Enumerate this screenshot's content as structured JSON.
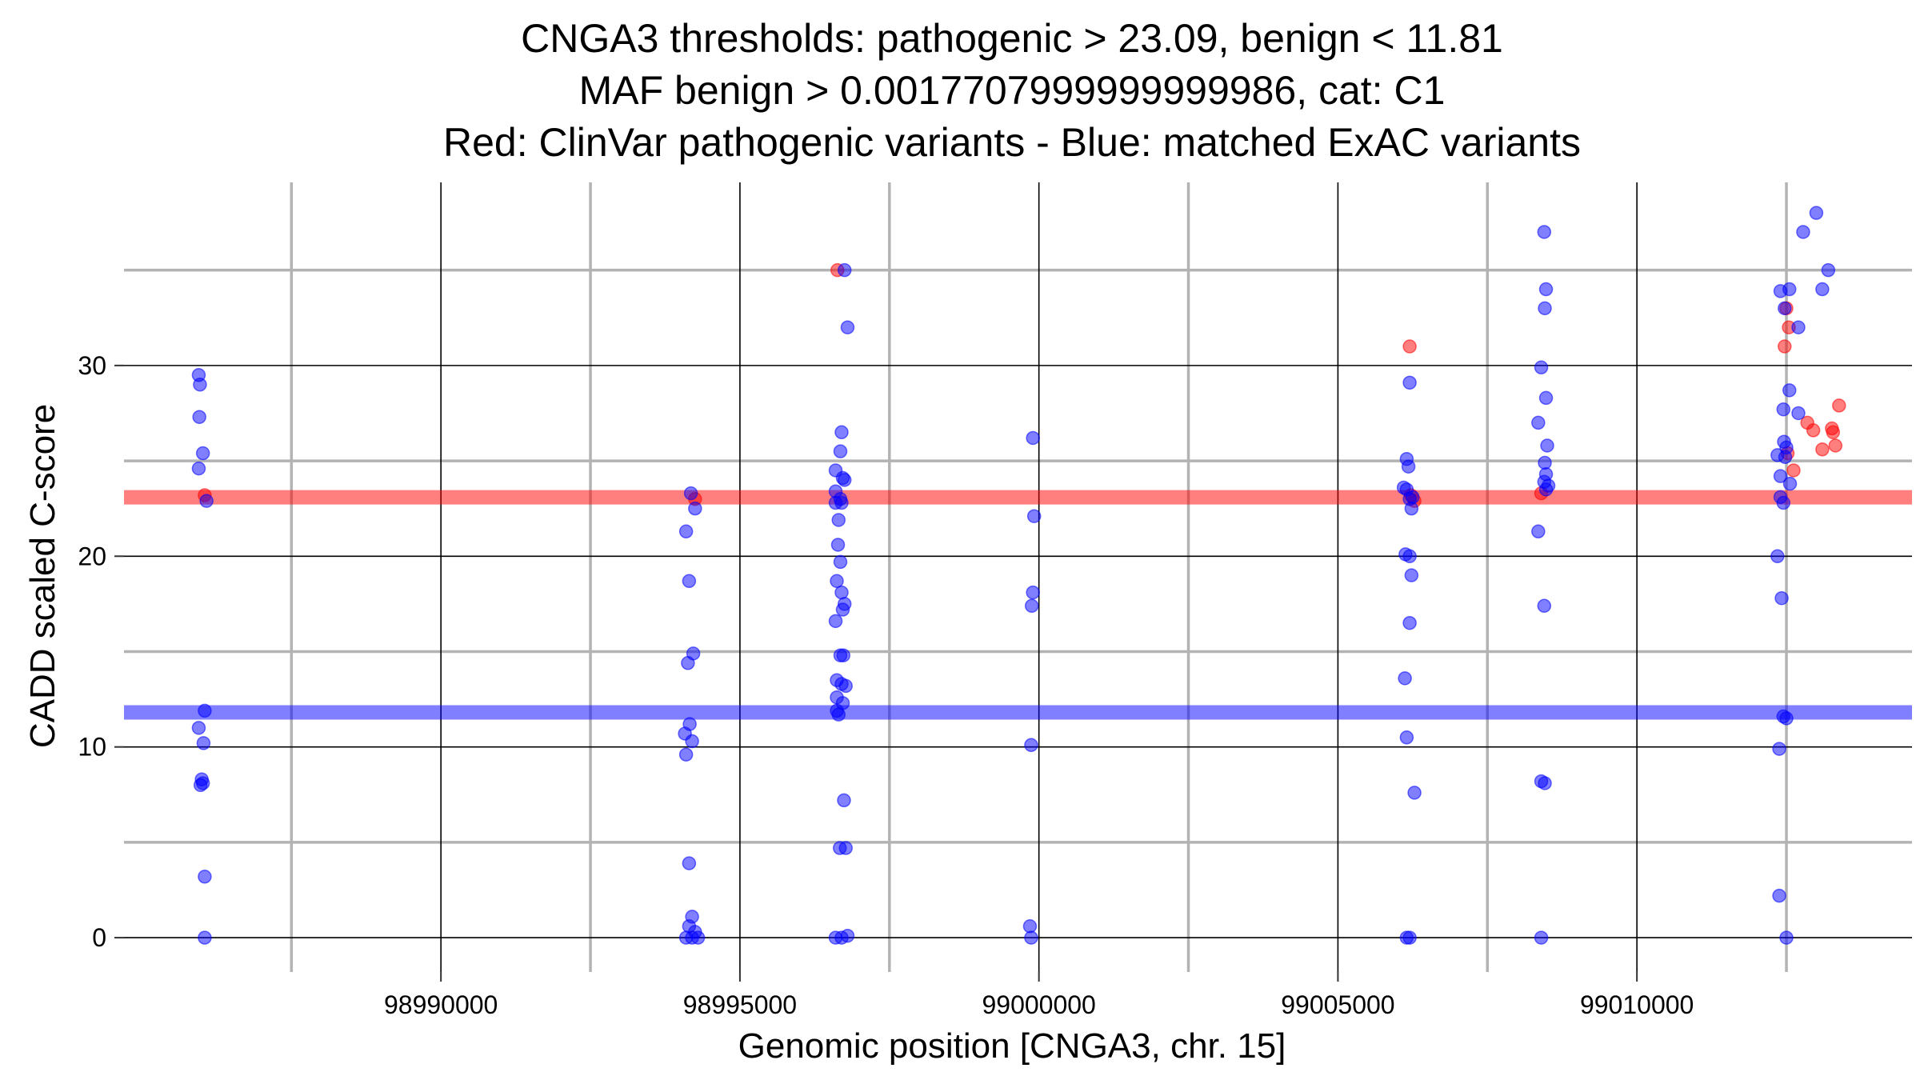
{
  "chart_data": {
    "type": "scatter",
    "title_lines": [
      "CNGA3 thresholds: pathogenic > 23.09, benign < 11.81",
      "MAF benign > 0.0017707999999999986, cat: C1",
      "Red: ClinVar pathogenic variants - Blue: matched ExAC variants"
    ],
    "xlabel": "Genomic position [CNGA3, chr. 15]",
    "ylabel": "CADD scaled C-score",
    "xlim": [
      98984700,
      99014600
    ],
    "ylim": [
      -1.8,
      39.6
    ],
    "x_ticks": [
      98990000,
      98995000,
      99000000,
      99005000,
      99010000
    ],
    "x_tick_labels": [
      "98990000",
      "98995000",
      "99000000",
      "99005000",
      "99010000"
    ],
    "x_minor_grid": [
      98987500,
      98992500,
      98997500,
      99002500,
      99007500,
      99012500
    ],
    "y_ticks": [
      0,
      10,
      20,
      30
    ],
    "y_tick_labels": [
      "0",
      "10",
      "20",
      "30"
    ],
    "y_minor_grid": [
      5,
      15,
      25,
      35
    ],
    "thresholds": {
      "pathogenic": {
        "value": 23.09,
        "color": "#ff0000"
      },
      "benign": {
        "value": 11.81,
        "color": "#0000ff"
      }
    },
    "series": [
      {
        "name": "ClinVar pathogenic variants",
        "color": "#ff0000",
        "points": [
          [
            98986050,
            23.2
          ],
          [
            98994250,
            23.0
          ],
          [
            98996630,
            35.0
          ],
          [
            99006200,
            31.0
          ],
          [
            99006220,
            23.2
          ],
          [
            99006280,
            22.9
          ],
          [
            99008400,
            23.3
          ],
          [
            99012500,
            33.0
          ],
          [
            99012540,
            32.0
          ],
          [
            99012470,
            31.0
          ],
          [
            99012520,
            25.4
          ],
          [
            99012620,
            24.5
          ],
          [
            99012850,
            27.0
          ],
          [
            99012950,
            26.6
          ],
          [
            99013100,
            25.6
          ],
          [
            99013260,
            26.7
          ],
          [
            99013280,
            26.5
          ],
          [
            99013320,
            25.8
          ],
          [
            99013380,
            27.9
          ]
        ]
      },
      {
        "name": "matched ExAC variants",
        "color": "#0000ff",
        "points": [
          [
            98985950,
            29.5
          ],
          [
            98985970,
            29.0
          ],
          [
            98985960,
            27.3
          ],
          [
            98986020,
            25.4
          ],
          [
            98985950,
            24.6
          ],
          [
            98986080,
            22.9
          ],
          [
            98986050,
            11.9
          ],
          [
            98985950,
            11.0
          ],
          [
            98986030,
            10.2
          ],
          [
            98986000,
            8.3
          ],
          [
            98985980,
            8.0
          ],
          [
            98986020,
            8.1
          ],
          [
            98986050,
            3.2
          ],
          [
            98986050,
            0.0
          ],
          [
            98994180,
            23.3
          ],
          [
            98994250,
            22.5
          ],
          [
            98994100,
            21.3
          ],
          [
            98994150,
            18.7
          ],
          [
            98994220,
            14.9
          ],
          [
            98994130,
            14.4
          ],
          [
            98994160,
            11.2
          ],
          [
            98994080,
            10.7
          ],
          [
            98994200,
            10.3
          ],
          [
            98994100,
            9.6
          ],
          [
            98994150,
            3.9
          ],
          [
            98994200,
            1.1
          ],
          [
            98994150,
            0.6
          ],
          [
            98994250,
            0.3
          ],
          [
            98994100,
            0.0
          ],
          [
            98994200,
            0.0
          ],
          [
            98994300,
            0.0
          ],
          [
            98996750,
            35.0
          ],
          [
            98996800,
            32.0
          ],
          [
            98996700,
            26.5
          ],
          [
            98996680,
            25.5
          ],
          [
            98996600,
            24.5
          ],
          [
            98996720,
            24.1
          ],
          [
            98996750,
            24.0
          ],
          [
            98996600,
            23.4
          ],
          [
            98996680,
            23.0
          ],
          [
            98996700,
            22.8
          ],
          [
            98996600,
            22.8
          ],
          [
            98996650,
            21.9
          ],
          [
            98996640,
            20.6
          ],
          [
            98996680,
            19.7
          ],
          [
            98996620,
            18.7
          ],
          [
            98996700,
            18.1
          ],
          [
            98996750,
            17.5
          ],
          [
            98996720,
            17.2
          ],
          [
            98996600,
            16.6
          ],
          [
            98996730,
            14.8
          ],
          [
            98996680,
            14.8
          ],
          [
            98996620,
            13.5
          ],
          [
            98996700,
            13.3
          ],
          [
            98996770,
            13.2
          ],
          [
            98996620,
            12.6
          ],
          [
            98996720,
            12.3
          ],
          [
            98996620,
            11.9
          ],
          [
            98996650,
            11.7
          ],
          [
            98996740,
            7.2
          ],
          [
            98996670,
            4.7
          ],
          [
            98996770,
            4.7
          ],
          [
            98996600,
            0.0
          ],
          [
            98996700,
            0.0
          ],
          [
            98996800,
            0.1
          ],
          [
            98999900,
            26.2
          ],
          [
            98999920,
            22.1
          ],
          [
            98999900,
            18.1
          ],
          [
            98999880,
            17.4
          ],
          [
            98999870,
            10.1
          ],
          [
            98999850,
            0.6
          ],
          [
            98999870,
            0.0
          ],
          [
            99006150,
            25.1
          ],
          [
            99006180,
            24.7
          ],
          [
            99006100,
            23.6
          ],
          [
            99006150,
            23.5
          ],
          [
            99006250,
            23.1
          ],
          [
            99006200,
            23.0
          ],
          [
            99006230,
            22.5
          ],
          [
            99006130,
            20.1
          ],
          [
            99006200,
            20.0
          ],
          [
            99006230,
            19.0
          ],
          [
            99006200,
            16.5
          ],
          [
            99006120,
            13.6
          ],
          [
            99006150,
            10.5
          ],
          [
            99006280,
            7.6
          ],
          [
            99006200,
            29.1
          ],
          [
            99006150,
            0.0
          ],
          [
            99006200,
            0.0
          ],
          [
            99008450,
            37.0
          ],
          [
            99008480,
            34.0
          ],
          [
            99008460,
            33.0
          ],
          [
            99008400,
            29.9
          ],
          [
            99008480,
            28.3
          ],
          [
            99008350,
            27.0
          ],
          [
            99008500,
            25.8
          ],
          [
            99008460,
            24.9
          ],
          [
            99008480,
            24.3
          ],
          [
            99008450,
            23.9
          ],
          [
            99008520,
            23.7
          ],
          [
            99008480,
            23.5
          ],
          [
            99008350,
            21.3
          ],
          [
            99008450,
            17.4
          ],
          [
            99008400,
            8.2
          ],
          [
            99008460,
            8.1
          ],
          [
            99008400,
            0.0
          ],
          [
            99012550,
            34.0
          ],
          [
            99012400,
            33.9
          ],
          [
            99012470,
            33.0
          ],
          [
            99012700,
            32.0
          ],
          [
            99012780,
            37.0
          ],
          [
            99013000,
            38.0
          ],
          [
            99013200,
            35.0
          ],
          [
            99013100,
            34.0
          ],
          [
            99012550,
            28.7
          ],
          [
            99012700,
            27.5
          ],
          [
            99012450,
            27.7
          ],
          [
            99012460,
            26.0
          ],
          [
            99012500,
            25.7
          ],
          [
            99012350,
            25.3
          ],
          [
            99012480,
            25.2
          ],
          [
            99012400,
            24.2
          ],
          [
            99012560,
            23.8
          ],
          [
            99012400,
            23.1
          ],
          [
            99012450,
            22.8
          ],
          [
            99012350,
            20.0
          ],
          [
            99012420,
            17.8
          ],
          [
            99012450,
            11.6
          ],
          [
            99012500,
            11.5
          ],
          [
            99012380,
            9.9
          ],
          [
            99012380,
            2.2
          ],
          [
            99012500,
            0.0
          ]
        ]
      }
    ]
  }
}
